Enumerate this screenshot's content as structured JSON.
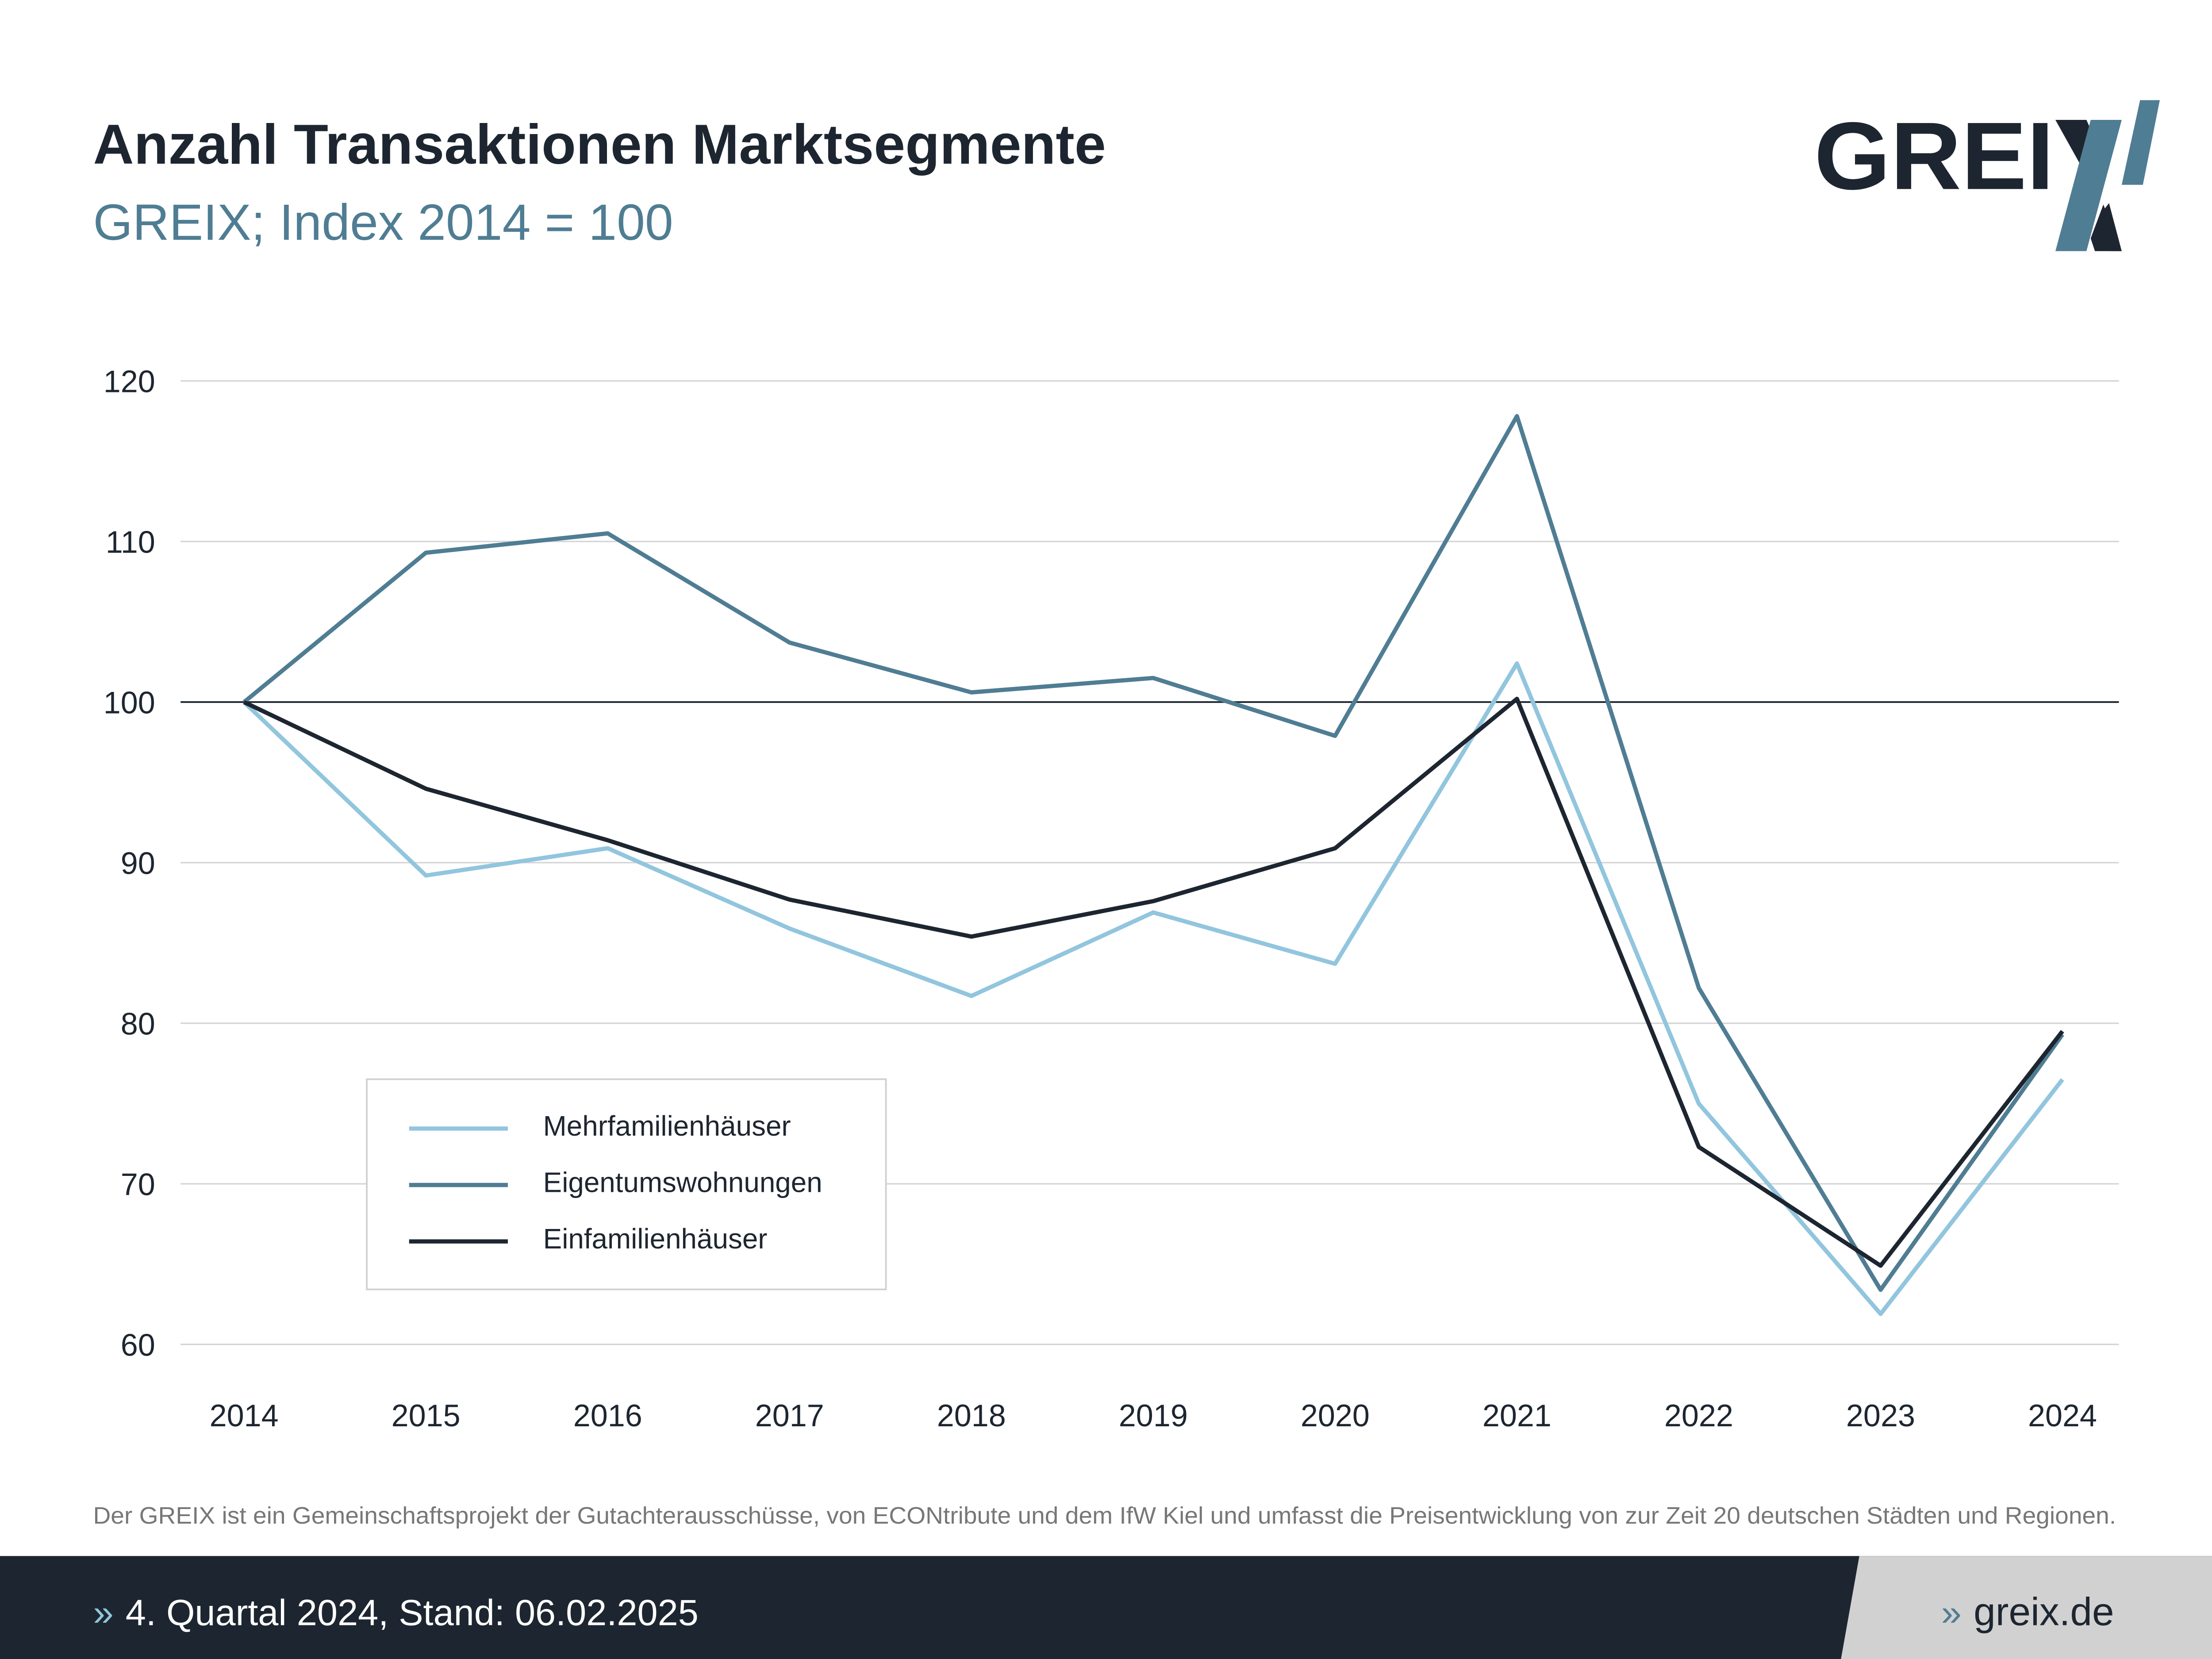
{
  "header": {
    "title": "Anzahl Transaktionen Marktsegmente",
    "subtitle": "GREIX; Index 2014 = 100",
    "logo_text": "GREIX"
  },
  "colors": {
    "mehrfamilien": "#92c5de",
    "eigentum": "#4f7d93",
    "einfamilien": "#1d2630",
    "footer_dark": "#1d2630",
    "footer_light": "#d1d1d1"
  },
  "chart_data": {
    "type": "line",
    "title": "Anzahl Transaktionen Marktsegmente",
    "subtitle": "GREIX; Index 2014 = 100",
    "x": [
      "2014",
      "2015",
      "2016",
      "2017",
      "2018",
      "2019",
      "2020",
      "2021",
      "2022",
      "2023",
      "2024"
    ],
    "ylim": [
      60,
      120
    ],
    "yticks": [
      "60",
      "70",
      "80",
      "90",
      "100",
      "110",
      "120"
    ],
    "grid": true,
    "reference_line": 100,
    "legend_position": "bottom-left",
    "series": [
      {
        "name": "Mehrfamilienhäuser",
        "values": [
          100,
          89.2,
          90.9,
          85.9,
          81.7,
          86.9,
          83.7,
          102.4,
          75.0,
          61.9,
          76.5
        ]
      },
      {
        "name": "Eigentumswohnungen",
        "values": [
          100,
          109.3,
          110.5,
          103.7,
          100.6,
          101.5,
          97.9,
          117.8,
          82.2,
          63.4,
          79.3
        ]
      },
      {
        "name": "Einfamilienhäuser",
        "values": [
          100,
          94.6,
          91.4,
          87.7,
          85.4,
          87.6,
          90.9,
          100.2,
          72.3,
          64.9,
          79.5
        ]
      }
    ]
  },
  "footnote": "Der GREIX ist ein Gemeinschaftsprojekt der Gutachterausschüsse, von ECONtribute und dem IfW Kiel und umfasst die Preisentwicklung von zur Zeit 20 deutschen Städten und Regionen.",
  "footer": {
    "chevron": "»",
    "status": "4. Quartal 2024, Stand: 06.02.2025",
    "link": "greix.de"
  }
}
